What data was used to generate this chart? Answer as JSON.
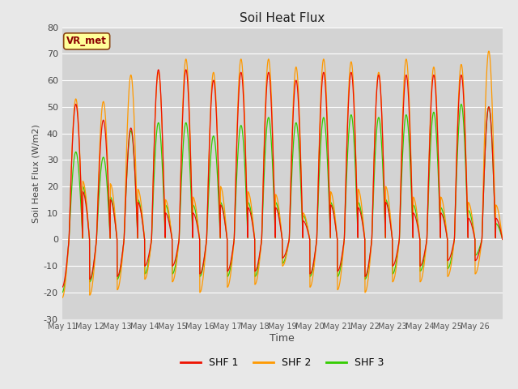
{
  "title": "Soil Heat Flux",
  "ylabel": "Soil Heat Flux (W/m2)",
  "xlabel": "Time",
  "ylim": [
    -30,
    80
  ],
  "yticks": [
    -30,
    -20,
    -10,
    0,
    10,
    20,
    30,
    40,
    50,
    60,
    70,
    80
  ],
  "background_color": "#e8e8e8",
  "plot_bg_color": "#d3d3d3",
  "grid_color": "#ffffff",
  "shf1_color": "#ee1100",
  "shf2_color": "#ff9900",
  "shf3_color": "#33cc00",
  "legend_labels": [
    "SHF 1",
    "SHF 2",
    "SHF 3"
  ],
  "watermark": "VR_met",
  "n_days": 16,
  "x_tick_labels": [
    "May 11",
    "May 12",
    "May 13",
    "May 14",
    "May 15",
    "May 16",
    "May 17",
    "May 18",
    "May 19",
    "May 20",
    "May 21",
    "May 22",
    "May 23",
    "May 24",
    "May 25",
    "May 26"
  ],
  "day_amplitudes_shf1": [
    51,
    45,
    42,
    64,
    64,
    60,
    63,
    63,
    60,
    63,
    63,
    62,
    62,
    62,
    62,
    50
  ],
  "day_amplitudes_shf2": [
    53,
    52,
    62,
    63,
    68,
    63,
    68,
    68,
    65,
    68,
    67,
    63,
    68,
    65,
    66,
    71
  ],
  "day_amplitudes_shf3": [
    33,
    31,
    41,
    44,
    44,
    39,
    43,
    46,
    44,
    46,
    47,
    46,
    47,
    48,
    51,
    50
  ],
  "valley_shf1": [
    -18,
    -15,
    -14,
    -10,
    -10,
    -13,
    -12,
    -12,
    -7,
    -13,
    -12,
    -14,
    -10,
    -10,
    -8,
    -8
  ],
  "valley_shf2": [
    -22,
    -21,
    -19,
    -15,
    -16,
    -20,
    -18,
    -17,
    -10,
    -18,
    -19,
    -20,
    -16,
    -16,
    -14,
    -13
  ],
  "valley_shf3": [
    -20,
    -16,
    -15,
    -13,
    -13,
    -14,
    -14,
    -14,
    -9,
    -14,
    -14,
    -15,
    -13,
    -12,
    -11,
    -6
  ]
}
